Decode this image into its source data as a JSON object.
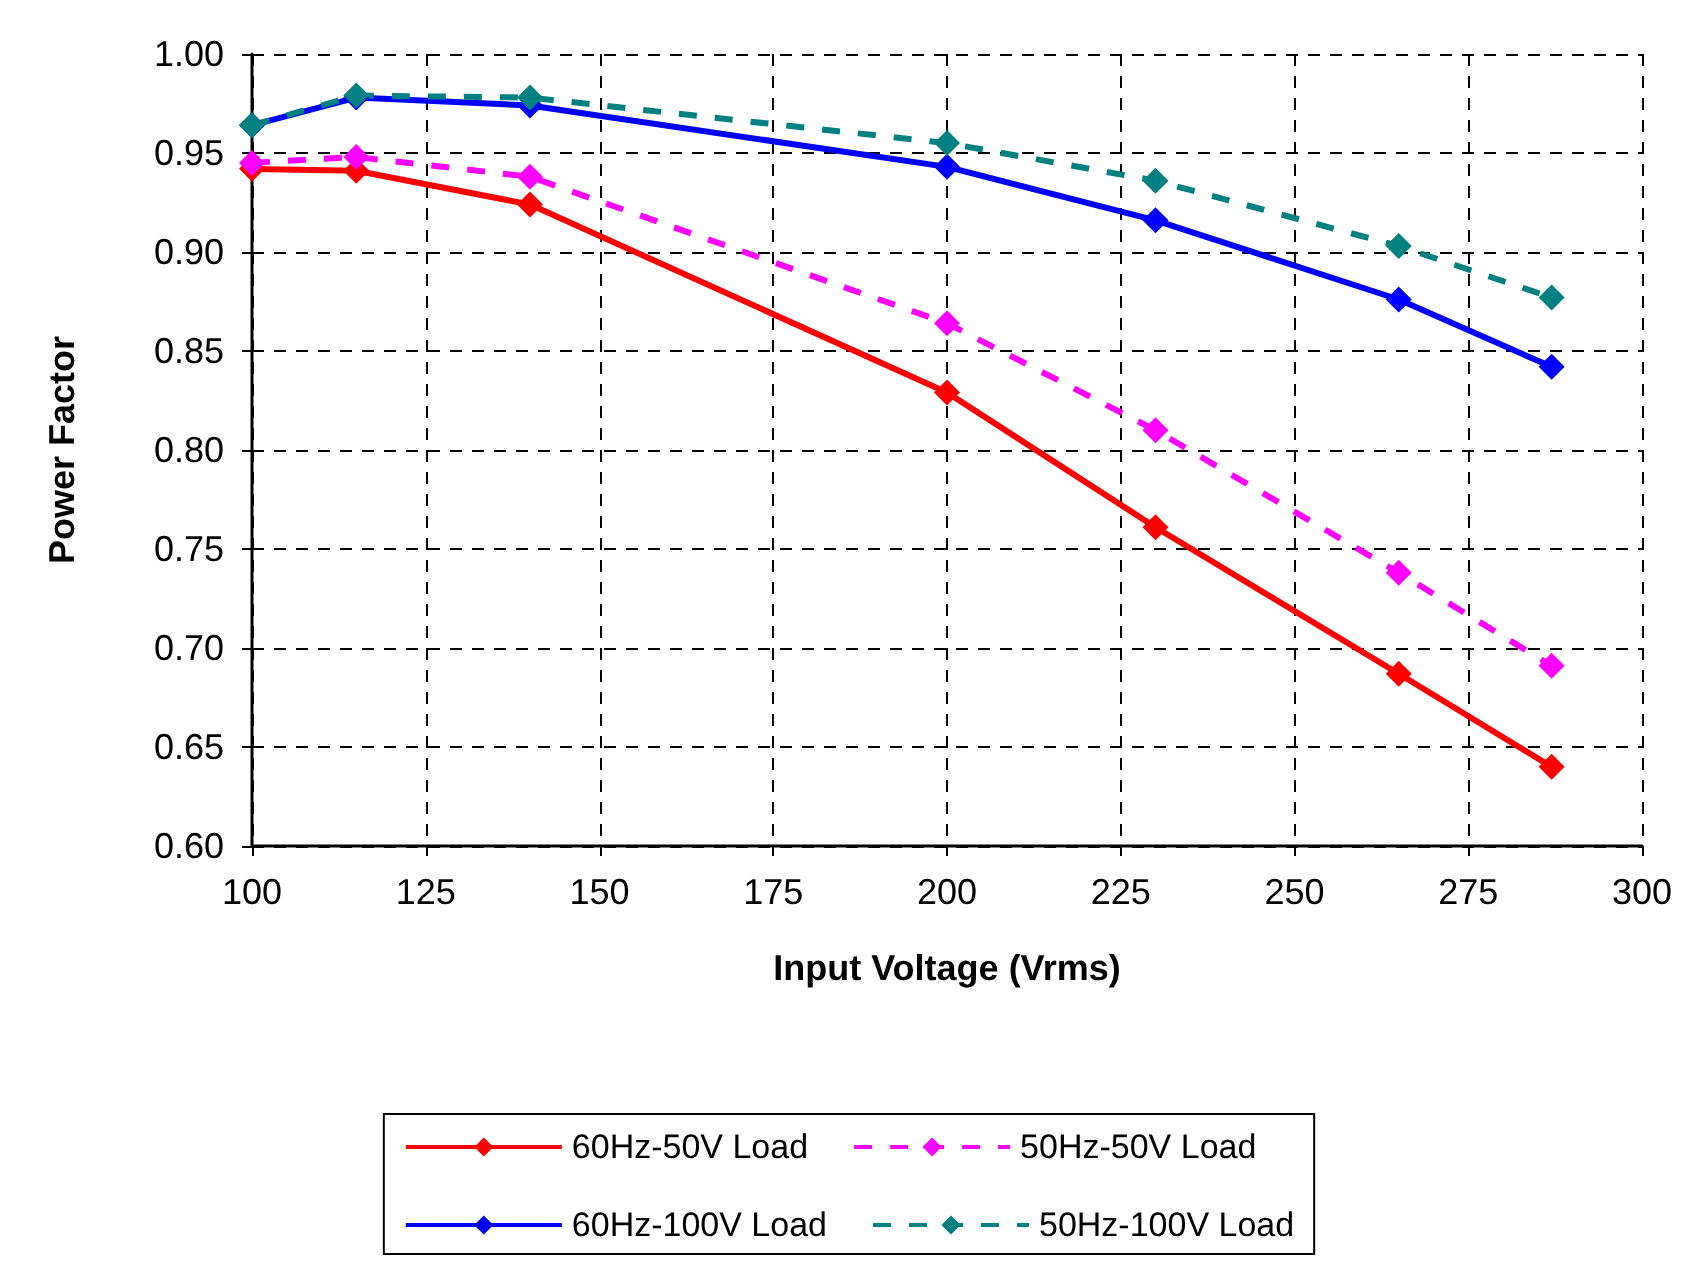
{
  "chart_data": {
    "type": "line",
    "xlabel": "Input Voltage (Vrms)",
    "ylabel": "Power Factor",
    "xlim": [
      100,
      300
    ],
    "xticks": [
      100,
      125,
      150,
      175,
      200,
      225,
      250,
      275,
      300
    ],
    "ylim": [
      0.6,
      1.0
    ],
    "yticks": [
      {
        "value": 0.6,
        "label": "0.60"
      },
      {
        "value": 0.65,
        "label": "0.65"
      },
      {
        "value": 0.7,
        "label": "0.70"
      },
      {
        "value": 0.75,
        "label": "0.75"
      },
      {
        "value": 0.8,
        "label": "0.80"
      },
      {
        "value": 0.85,
        "label": "0.85"
      },
      {
        "value": 0.9,
        "label": "0.90"
      },
      {
        "value": 0.95,
        "label": "0.95"
      },
      {
        "value": 1.0,
        "label": "1.00"
      }
    ],
    "grid": true,
    "legend": "bottom",
    "marker": "diamond",
    "x": [
      100,
      115,
      140,
      200,
      230,
      265,
      287
    ],
    "series": [
      {
        "name": "60Hz-50V Load",
        "color": "#ff0000",
        "line_style": "solid",
        "values": [
          0.942,
          0.941,
          0.924,
          0.829,
          0.761,
          0.687,
          0.64
        ]
      },
      {
        "name": "50Hz-50V Load",
        "color": "#ff00ff",
        "line_style": "dashed",
        "values": [
          0.945,
          0.948,
          0.938,
          0.864,
          0.81,
          0.738,
          0.691
        ]
      },
      {
        "name": "60Hz-100V Load",
        "color": "#0000ff",
        "line_style": "solid",
        "values": [
          0.964,
          0.978,
          0.974,
          0.943,
          0.916,
          0.876,
          0.842
        ]
      },
      {
        "name": "50Hz-100V Load",
        "color": "#008080",
        "line_style": "dashed",
        "values": [
          0.964,
          0.979,
          0.978,
          0.955,
          0.936,
          0.903,
          0.877
        ]
      }
    ]
  }
}
